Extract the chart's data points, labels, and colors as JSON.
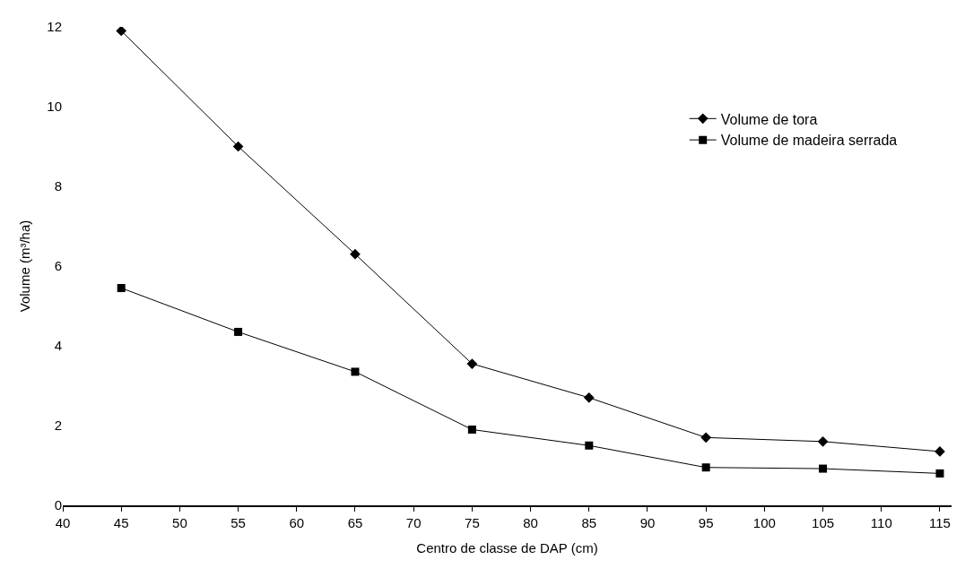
{
  "chart_data": {
    "type": "line",
    "xlabel": "Centro de classe de DAP (cm)",
    "ylabel": "Volume (m³/ha)",
    "x": [
      45,
      55,
      65,
      75,
      85,
      95,
      105,
      115
    ],
    "series": [
      {
        "name": "Volume de tora",
        "color": "#000000",
        "marker": "diamond",
        "values": [
          11.9,
          9.0,
          6.3,
          3.55,
          2.7,
          1.7,
          1.6,
          1.35
        ]
      },
      {
        "name": "Volume de madeira serrada",
        "color": "#000000",
        "marker": "square",
        "values": [
          5.45,
          4.35,
          3.35,
          1.9,
          1.5,
          0.95,
          0.92,
          0.8
        ]
      }
    ],
    "xlim": [
      40,
      116
    ],
    "xticks": [
      40,
      45,
      50,
      55,
      60,
      65,
      70,
      75,
      80,
      85,
      90,
      95,
      100,
      105,
      110,
      115
    ],
    "ylim": [
      0,
      12
    ],
    "yticks": [
      0,
      2,
      4,
      6,
      8,
      10,
      12
    ],
    "legend": "right",
    "line_style": "solid"
  }
}
